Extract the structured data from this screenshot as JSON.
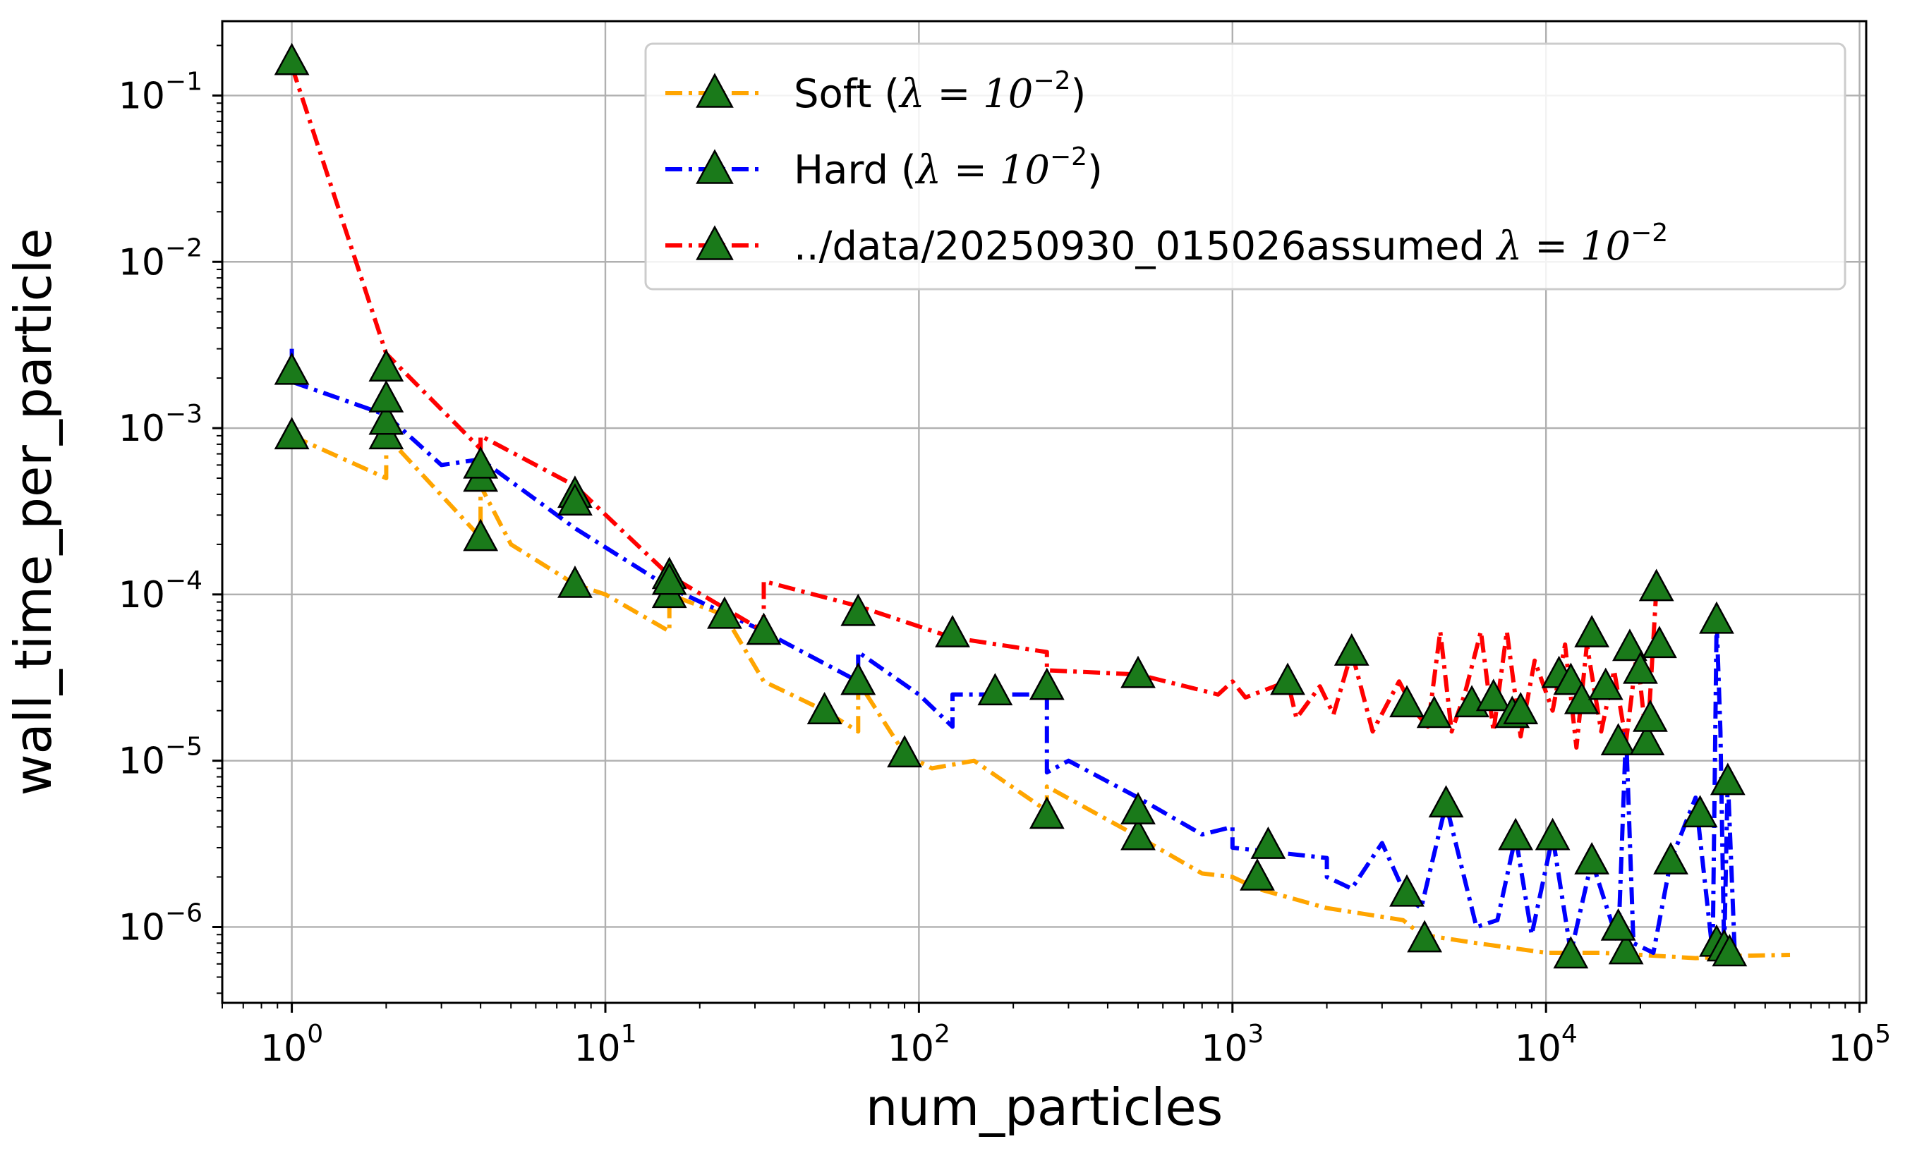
{
  "chart_data": {
    "type": "line",
    "title": "",
    "xlabel": "num_particles",
    "ylabel": "wall_time_per_particle",
    "xscale": "log",
    "yscale": "log",
    "xlim": [
      0.6,
      105000
    ],
    "ylim": [
      3.5e-07,
      0.28
    ],
    "xticks": [
      {
        "value": 1,
        "base": "10",
        "exp": "0"
      },
      {
        "value": 10,
        "base": "10",
        "exp": "1"
      },
      {
        "value": 100,
        "base": "10",
        "exp": "2"
      },
      {
        "value": 1000,
        "base": "10",
        "exp": "3"
      },
      {
        "value": 10000,
        "base": "10",
        "exp": "4"
      },
      {
        "value": 100000,
        "base": "10",
        "exp": "5"
      }
    ],
    "yticks": [
      {
        "value": 1e-06,
        "base": "10",
        "exp": "−6"
      },
      {
        "value": 1e-05,
        "base": "10",
        "exp": "−5"
      },
      {
        "value": 0.0001,
        "base": "10",
        "exp": "−4"
      },
      {
        "value": 0.001,
        "base": "10",
        "exp": "−3"
      },
      {
        "value": 0.01,
        "base": "10",
        "exp": "−2"
      },
      {
        "value": 0.1,
        "base": "10",
        "exp": "−1"
      }
    ],
    "grid": true,
    "legend_position": "top-right",
    "marker": {
      "shape": "triangle-up",
      "fill": "#1a7a1a",
      "edge": "#000000"
    },
    "series": [
      {
        "name_prefix": "Soft (",
        "name_math": "λ = 10",
        "name_exp": "−2",
        "name_suffix": ")",
        "color": "#ffa500",
        "line": [
          [
            1,
            0.0009
          ],
          [
            2,
            0.0005
          ],
          [
            2,
            0.0009
          ],
          [
            4,
            0.00022
          ],
          [
            4,
            0.00045
          ],
          [
            5,
            0.0002
          ],
          [
            8,
            0.000115
          ],
          [
            10,
            0.0001
          ],
          [
            16,
            6e-05
          ],
          [
            16,
            0.0001
          ],
          [
            24,
            7.5e-05
          ],
          [
            32,
            3e-05
          ],
          [
            50,
            2e-05
          ],
          [
            64,
            1.5e-05
          ],
          [
            64,
            3e-05
          ],
          [
            90,
            1.1e-05
          ],
          [
            110,
            9e-06
          ],
          [
            150,
            1e-05
          ],
          [
            256,
            5e-06
          ],
          [
            256,
            7e-06
          ],
          [
            500,
            3.5e-06
          ],
          [
            800,
            2.1e-06
          ],
          [
            1000,
            2e-06
          ],
          [
            1200,
            1.7e-06
          ],
          [
            2000,
            1.3e-06
          ],
          [
            3500,
            1.1e-06
          ],
          [
            4000,
            9e-07
          ],
          [
            6000,
            8e-07
          ],
          [
            10000,
            7e-07
          ],
          [
            15000,
            7e-07
          ],
          [
            20000,
            6.8e-07
          ],
          [
            30000,
            6.5e-07
          ],
          [
            40000,
            6.7e-07
          ],
          [
            60000,
            6.8e-07
          ]
        ],
        "markers": [
          [
            1,
            0.0009
          ],
          [
            2,
            0.0009
          ],
          [
            4,
            0.00022
          ],
          [
            4,
            0.0005
          ],
          [
            8,
            0.000115
          ],
          [
            16,
            0.0001
          ],
          [
            24,
            7.5e-05
          ],
          [
            32,
            6e-05
          ],
          [
            50,
            2e-05
          ],
          [
            64,
            3e-05
          ],
          [
            90,
            1.1e-05
          ],
          [
            256,
            4.7e-06
          ],
          [
            500,
            3.5e-06
          ],
          [
            500,
            5e-06
          ],
          [
            1200,
            2e-06
          ],
          [
            4100,
            8.5e-07
          ],
          [
            12000,
            6.8e-07
          ],
          [
            18000,
            7.2e-07
          ],
          [
            35000,
            8e-07
          ],
          [
            37000,
            7.5e-07
          ],
          [
            38500,
            7e-07
          ]
        ]
      },
      {
        "name_prefix": "Hard (",
        "name_math": "λ = 10",
        "name_exp": "−2",
        "name_suffix": ")",
        "color": "#0000ff",
        "line": [
          [
            1,
            0.003
          ],
          [
            1,
            0.0019
          ],
          [
            2,
            0.0012
          ],
          [
            3,
            0.0006
          ],
          [
            4,
            0.00065
          ],
          [
            8,
            0.00025
          ],
          [
            16,
            0.00011
          ],
          [
            32,
            6e-05
          ],
          [
            64,
            3e-05
          ],
          [
            64,
            4.5e-05
          ],
          [
            100,
            2.5e-05
          ],
          [
            128,
            1.6e-05
          ],
          [
            128,
            2.5e-05
          ],
          [
            175,
            2.5e-05
          ],
          [
            256,
            2.5e-05
          ],
          [
            256,
            8.5e-06
          ],
          [
            300,
            1e-05
          ],
          [
            500,
            6e-06
          ],
          [
            800,
            3.6e-06
          ],
          [
            1000,
            4e-06
          ],
          [
            1000,
            3e-06
          ],
          [
            2000,
            2.6e-06
          ],
          [
            2000,
            2e-06
          ],
          [
            2400,
            1.7e-06
          ],
          [
            3000,
            3.2e-06
          ],
          [
            3600,
            1.5e-06
          ],
          [
            4000,
            1.3e-06
          ],
          [
            4800,
            5.5e-06
          ],
          [
            6000,
            1e-06
          ],
          [
            7000,
            1.1e-06
          ],
          [
            8000,
            3.5e-06
          ],
          [
            9000,
            9e-07
          ],
          [
            10500,
            3.5e-06
          ],
          [
            12000,
            7e-07
          ],
          [
            14000,
            2.5e-06
          ],
          [
            17000,
            8e-07
          ],
          [
            18000,
            1.5e-05
          ],
          [
            19000,
            8e-07
          ],
          [
            22000,
            7e-07
          ],
          [
            25000,
            2.5e-06
          ],
          [
            30000,
            6e-06
          ],
          [
            34000,
            7e-07
          ],
          [
            35000,
            7e-05
          ],
          [
            36000,
            1.5e-05
          ],
          [
            37000,
            7e-07
          ],
          [
            38000,
            8e-06
          ],
          [
            40000,
            7e-07
          ]
        ],
        "markers": [
          [
            1,
            0.0022
          ],
          [
            2,
            0.0011
          ],
          [
            4,
            0.0006
          ],
          [
            8,
            0.0004
          ],
          [
            16,
            0.00013
          ],
          [
            64,
            3e-05
          ],
          [
            128,
            5.8e-05
          ],
          [
            175,
            2.6e-05
          ],
          [
            256,
            2.8e-05
          ],
          [
            1300,
            3.1e-06
          ],
          [
            3600,
            1.6e-06
          ],
          [
            4800,
            5.5e-06
          ],
          [
            8000,
            3.5e-06
          ],
          [
            10500,
            3.5e-06
          ],
          [
            14000,
            2.5e-06
          ],
          [
            17000,
            1e-06
          ],
          [
            25000,
            2.5e-06
          ],
          [
            31000,
            4.8e-06
          ],
          [
            35000,
            7e-05
          ],
          [
            38000,
            7.5e-06
          ]
        ]
      },
      {
        "name_prefix": "../data/20250930_015026assumed ",
        "name_math": "λ = 10",
        "name_exp": "−2",
        "name_suffix": "",
        "color": "#ff0000",
        "line": [
          [
            1,
            0.15
          ],
          [
            2,
            0.0028
          ],
          [
            4,
            0.00075
          ],
          [
            4,
            0.0009
          ],
          [
            8,
            0.00045
          ],
          [
            16,
            0.00013
          ],
          [
            32,
            6e-05
          ],
          [
            32,
            0.00012
          ],
          [
            64,
            8.5e-05
          ],
          [
            128,
            5.5e-05
          ],
          [
            256,
            4.5e-05
          ],
          [
            256,
            3.5e-05
          ],
          [
            500,
            3.3e-05
          ],
          [
            900,
            2.5e-05
          ],
          [
            1000,
            3e-05
          ],
          [
            1100,
            2.4e-05
          ],
          [
            1500,
            3e-05
          ],
          [
            1600,
            1.8e-05
          ],
          [
            1900,
            2.8e-05
          ],
          [
            2100,
            1.9e-05
          ],
          [
            2400,
            4.5e-05
          ],
          [
            2800,
            1.5e-05
          ],
          [
            3400,
            3e-05
          ],
          [
            3800,
            2e-05
          ],
          [
            4200,
            1.6e-05
          ],
          [
            4600,
            6e-05
          ],
          [
            5000,
            1.5e-05
          ],
          [
            5500,
            2.5e-05
          ],
          [
            6200,
            6e-05
          ],
          [
            6800,
            1.5e-05
          ],
          [
            7500,
            6e-05
          ],
          [
            8300,
            1.4e-05
          ],
          [
            9200,
            4e-05
          ],
          [
            10500,
            2e-05
          ],
          [
            11500,
            5e-05
          ],
          [
            12500,
            1.2e-05
          ],
          [
            13500,
            5e-05
          ],
          [
            15000,
            1.5e-05
          ],
          [
            16500,
            3.5e-05
          ],
          [
            18000,
            1.3e-05
          ],
          [
            19500,
            4.5e-05
          ],
          [
            21000,
            1.2e-05
          ],
          [
            22500,
            0.00011
          ]
        ],
        "markers": [
          [
            1,
            0.16
          ],
          [
            2,
            0.0023
          ],
          [
            2,
            0.0015
          ],
          [
            8,
            0.00036
          ],
          [
            16,
            0.00012
          ],
          [
            64,
            7.8e-05
          ],
          [
            500,
            3.3e-05
          ],
          [
            1500,
            3e-05
          ],
          [
            2400,
            4.5e-05
          ],
          [
            3600,
            2.2e-05
          ],
          [
            4400,
            1.9e-05
          ],
          [
            5800,
            2.2e-05
          ],
          [
            6800,
            2.4e-05
          ],
          [
            7800,
            1.9e-05
          ],
          [
            8300,
            2e-05
          ],
          [
            11000,
            3.3e-05
          ],
          [
            12000,
            3e-05
          ],
          [
            13000,
            2.3e-05
          ],
          [
            14000,
            5.8e-05
          ],
          [
            15500,
            2.8e-05
          ],
          [
            17000,
            1.3e-05
          ],
          [
            18500,
            4.8e-05
          ],
          [
            20000,
            3.5e-05
          ],
          [
            21000,
            1.3e-05
          ],
          [
            21500,
            1.8e-05
          ],
          [
            22500,
            0.00011
          ],
          [
            23000,
            5e-05
          ]
        ]
      }
    ]
  }
}
